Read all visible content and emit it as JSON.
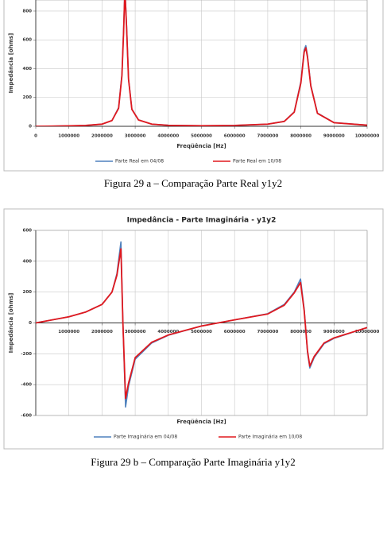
{
  "chart_data": [
    {
      "type": "line",
      "caption": "Figura 29 a – Comparação Parte Real y1y2",
      "x_label": "Freqüência [Hz]",
      "y_label": "Impedância [ohms]",
      "x": [
        0,
        500000,
        1000000,
        1500000,
        2000000,
        2300000,
        2500000,
        2600000,
        2650000,
        2690000,
        2740000,
        2800000,
        2900000,
        3100000,
        3500000,
        4000000,
        5000000,
        6000000,
        7000000,
        7500000,
        7800000,
        8000000,
        8100000,
        8150000,
        8200000,
        8300000,
        8500000,
        9000000,
        10000000
      ],
      "series": [
        {
          "name": "Parte Real em 04/08",
          "color": "#4f81bd",
          "values": [
            0,
            1,
            3,
            6,
            15,
            40,
            130,
            360,
            660,
            960,
            700,
            330,
            120,
            45,
            15,
            7,
            4,
            6,
            15,
            35,
            100,
            310,
            530,
            560,
            490,
            285,
            92,
            26,
            8
          ]
        },
        {
          "name": "Parte Real em 10/08",
          "color": "#e0191f",
          "values": [
            0,
            1,
            3,
            6,
            15,
            40,
            125,
            350,
            650,
            950,
            690,
            325,
            118,
            44,
            15,
            7,
            4,
            6,
            15,
            34,
            98,
            300,
            515,
            545,
            480,
            280,
            90,
            25,
            8
          ]
        }
      ],
      "xlim": [
        0,
        10000000
      ],
      "xticks": [
        0,
        1000000,
        2000000,
        3000000,
        4000000,
        5000000,
        6000000,
        7000000,
        8000000,
        9000000,
        10000000
      ],
      "ylim": [
        0,
        877
      ],
      "yticks": [
        0,
        200,
        400,
        600,
        800
      ],
      "grid": true
    },
    {
      "type": "line",
      "title": "Impedância - Parte Imaginária - y1y2",
      "caption": "Figura 29 b  – Comparação Parte Imaginária y1y2",
      "x_label": "Freqüência [Hz]",
      "y_label": "Impedância [ohms]",
      "x": [
        0,
        500000,
        1000000,
        1500000,
        2000000,
        2300000,
        2450000,
        2570000,
        2630000,
        2710000,
        2800000,
        3000000,
        3500000,
        4000000,
        5000000,
        5500000,
        6000000,
        7000000,
        7500000,
        7800000,
        7990000,
        8100000,
        8200000,
        8270000,
        8400000,
        8700000,
        9000000,
        10000000
      ],
      "series": [
        {
          "name": "Parte Imaginária em 04/08",
          "color": "#4f81bd",
          "values": [
            0,
            20,
            40,
            70,
            120,
            200,
            320,
            525,
            0,
            -545,
            -410,
            -235,
            -130,
            -80,
            -20,
            0,
            20,
            60,
            120,
            200,
            285,
            90,
            -190,
            -292,
            -225,
            -135,
            -100,
            -30
          ]
        },
        {
          "name": "Parte Imaginária em 10/08",
          "color": "#e0191f",
          "values": [
            0,
            20,
            40,
            70,
            120,
            200,
            310,
            480,
            0,
            -490,
            -390,
            -225,
            -125,
            -78,
            -20,
            0,
            20,
            58,
            115,
            195,
            262,
            80,
            -180,
            -280,
            -218,
            -130,
            -97,
            -30
          ]
        }
      ],
      "xlim": [
        0,
        10000000
      ],
      "xticks": [
        1000000,
        2000000,
        3000000,
        4000000,
        5000000,
        6000000,
        7000000,
        8000000,
        9000000,
        10000000
      ],
      "ylim": [
        -600,
        600
      ],
      "yticks": [
        -600,
        -400,
        -200,
        0,
        200,
        400,
        600
      ],
      "grid": true
    }
  ]
}
